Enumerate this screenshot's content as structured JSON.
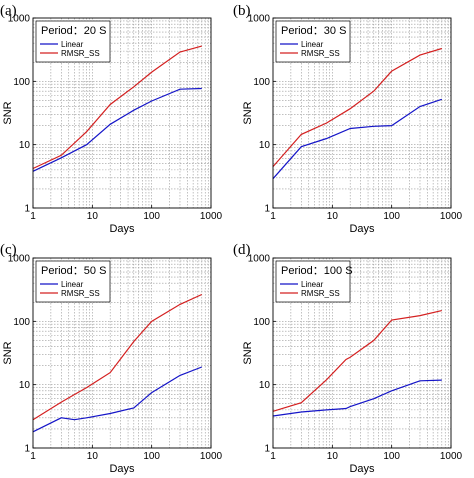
{
  "chart_data": [
    {
      "type": "line",
      "panel_label": "(a)",
      "title": "Period：20 S",
      "xlabel": "Days",
      "ylabel": "SNR",
      "xscale": "log",
      "yscale": "log",
      "xlim": [
        1,
        1000
      ],
      "ylim": [
        1,
        1000
      ],
      "xticks": [
        "1",
        "10",
        "100",
        "1000"
      ],
      "yticks": [
        "1",
        "10",
        "100",
        "1000"
      ],
      "grid": true,
      "legend": "top-left",
      "series": [
        {
          "name": "Linear",
          "color": "#1515c8",
          "x": [
            1,
            3,
            8,
            20,
            50,
            100,
            300,
            700
          ],
          "y": [
            3.8,
            6.2,
            10,
            21,
            35,
            49,
            75,
            77
          ]
        },
        {
          "name": "RMSR_SS",
          "color": "#d42020",
          "x": [
            1,
            3,
            8,
            20,
            50,
            100,
            300,
            700
          ],
          "y": [
            4.2,
            6.8,
            16,
            43,
            82,
            140,
            290,
            360
          ]
        }
      ]
    },
    {
      "type": "line",
      "panel_label": "(b)",
      "title": "Period：30 S",
      "xlabel": "Days",
      "ylabel": "SNR",
      "xscale": "log",
      "yscale": "log",
      "xlim": [
        1,
        1000
      ],
      "ylim": [
        1,
        1000
      ],
      "xticks": [
        "1",
        "10",
        "100",
        "1000"
      ],
      "yticks": [
        "1",
        "10",
        "100",
        "1000"
      ],
      "grid": true,
      "legend": "top-left",
      "series": [
        {
          "name": "Linear",
          "color": "#1515c8",
          "x": [
            1,
            3,
            8,
            20,
            50,
            100,
            300,
            700
          ],
          "y": [
            2.9,
            9.3,
            12.5,
            18,
            19.5,
            20,
            40,
            52
          ]
        },
        {
          "name": "RMSR_SS",
          "color": "#d42020",
          "x": [
            1,
            3,
            8,
            20,
            50,
            100,
            300,
            700
          ],
          "y": [
            4.5,
            14.5,
            22,
            37,
            70,
            145,
            260,
            330
          ]
        }
      ]
    },
    {
      "type": "line",
      "panel_label": "(c)",
      "title": "Period：50 S",
      "xlabel": "Days",
      "ylabel": "SNR",
      "xscale": "log",
      "yscale": "log",
      "xlim": [
        1,
        1000
      ],
      "ylim": [
        1,
        1000
      ],
      "xticks": [
        "1",
        "10",
        "100",
        "1000"
      ],
      "yticks": [
        "1",
        "10",
        "100",
        "1000"
      ],
      "grid": true,
      "legend": "top-left",
      "series": [
        {
          "name": "Linear",
          "color": "#1515c8",
          "x": [
            1,
            3,
            5,
            8,
            20,
            50,
            100,
            300,
            700
          ],
          "y": [
            1.8,
            3.0,
            2.8,
            3.0,
            3.5,
            4.3,
            7.5,
            14,
            19
          ]
        },
        {
          "name": "RMSR_SS",
          "color": "#d42020",
          "x": [
            1,
            3,
            5,
            8,
            20,
            50,
            100,
            300,
            700
          ],
          "y": [
            2.8,
            5.3,
            7,
            9,
            15.5,
            48,
            100,
            185,
            265
          ]
        }
      ]
    },
    {
      "type": "line",
      "panel_label": "(d)",
      "title": "Period：100 S",
      "xlabel": "Days",
      "ylabel": "SNR",
      "xscale": "log",
      "yscale": "log",
      "xlim": [
        1,
        1000
      ],
      "ylim": [
        1,
        1000
      ],
      "xticks": [
        "1",
        "10",
        "100",
        "1000"
      ],
      "yticks": [
        "1",
        "10",
        "100",
        "1000"
      ],
      "grid": true,
      "legend": "top-left",
      "series": [
        {
          "name": "Linear",
          "color": "#1515c8",
          "x": [
            1,
            3,
            8,
            17,
            20,
            50,
            100,
            300,
            700
          ],
          "y": [
            3.2,
            3.7,
            4.0,
            4.2,
            4.5,
            6.0,
            8.0,
            11.5,
            11.8
          ]
        },
        {
          "name": "RMSR_SS",
          "color": "#d42020",
          "x": [
            1,
            3,
            8,
            17,
            20,
            50,
            100,
            300,
            700
          ],
          "y": [
            3.8,
            5.2,
            12,
            25,
            27,
            50,
            105,
            123,
            148
          ]
        }
      ]
    }
  ]
}
